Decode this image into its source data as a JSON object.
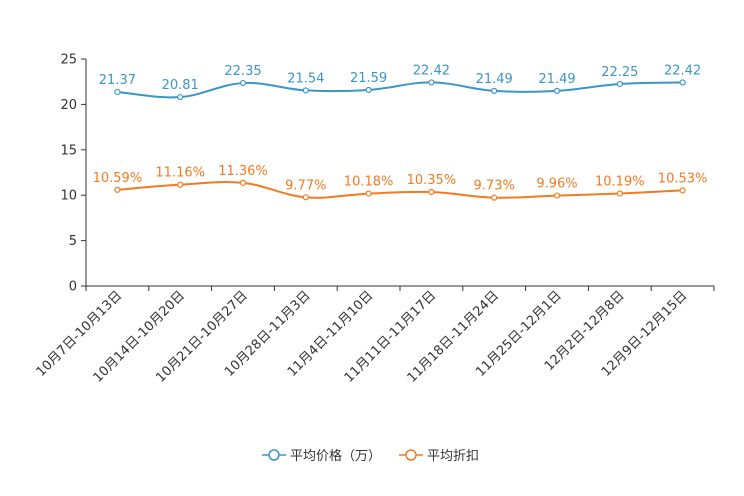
{
  "chart_data": {
    "type": "line",
    "title": "",
    "xlabel": "",
    "ylabel": "",
    "ylim": [
      0,
      25
    ],
    "yticks": [
      0,
      5,
      10,
      15,
      20,
      25
    ],
    "grid": false,
    "legend_position": "bottom-center",
    "categories": [
      "10月7日-10月13日",
      "10月14日-10月20日",
      "10月21日-10月27日",
      "10月28日-11月3日",
      "11月4日-11月10日",
      "11月11日-11月17日",
      "11月18日-11月24日",
      "11月25日-12月1日",
      "12月2日-12月8日",
      "12月9日-12月15日"
    ],
    "series": [
      {
        "name": "平均价格（万）",
        "color": "#3a96c9",
        "values": [
          21.37,
          20.81,
          22.35,
          21.54,
          21.59,
          22.42,
          21.49,
          21.49,
          22.25,
          22.42
        ],
        "labels": [
          "21.37",
          "20.81",
          "22.35",
          "21.54",
          "21.59",
          "22.42",
          "21.49",
          "21.49",
          "22.25",
          "22.42"
        ]
      },
      {
        "name": "平均折扣",
        "color": "#f47a20",
        "values": [
          10.59,
          11.16,
          11.36,
          9.77,
          10.18,
          10.35,
          9.73,
          9.96,
          10.19,
          10.53
        ],
        "labels": [
          "10.59%",
          "11.16%",
          "11.36%",
          "9.77%",
          "10.18%",
          "10.35%",
          "9.73%",
          "9.96%",
          "10.19%",
          "10.53%"
        ]
      }
    ]
  }
}
